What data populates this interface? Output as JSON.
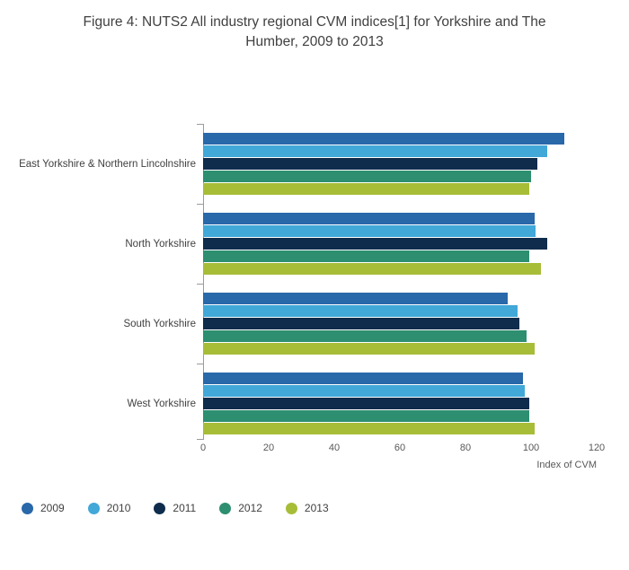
{
  "title": "Figure 4: NUTS2 All industry regional CVM indices[1] for Yorkshire and The Humber, 2009 to 2013",
  "chart_data": {
    "type": "bar",
    "orientation": "horizontal",
    "categories": [
      "East Yorkshire & Northern Lincolnshire",
      "North Yorkshire",
      "South Yorkshire",
      "West Yorkshire"
    ],
    "series": [
      {
        "name": "2009",
        "color": "#2968a9",
        "values": [
          110,
          101,
          93,
          97.5
        ]
      },
      {
        "name": "2010",
        "color": "#41a8d8",
        "values": [
          105,
          101.5,
          96,
          98
        ]
      },
      {
        "name": "2011",
        "color": "#0f2c4c",
        "values": [
          102,
          105,
          96.5,
          99.5
        ]
      },
      {
        "name": "2012",
        "color": "#2d8f6f",
        "values": [
          100,
          99.5,
          98.5,
          99.5
        ]
      },
      {
        "name": "2013",
        "color": "#a7bd38",
        "values": [
          99.5,
          103,
          101,
          101
        ]
      }
    ],
    "xlabel": "Index of CVM",
    "xlim": [
      0,
      120
    ],
    "xticks": [
      0,
      20,
      40,
      60,
      80,
      100,
      120
    ],
    "grid": false,
    "legend_position": "bottom-left"
  }
}
